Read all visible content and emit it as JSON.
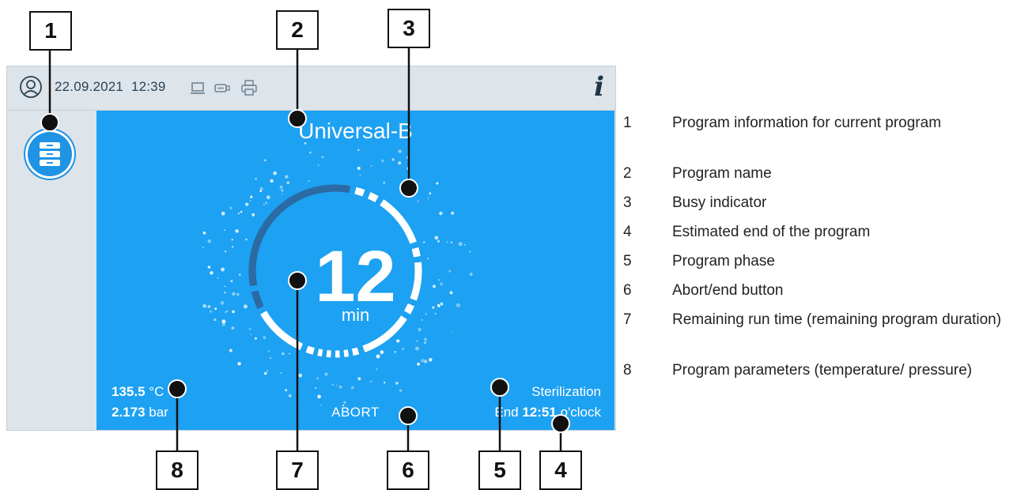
{
  "status_bar": {
    "date": "22.09.2021",
    "time": "12:39",
    "icons": [
      "user-icon",
      "computer-icon",
      "usb-stick-icon",
      "printer-icon"
    ],
    "info_label": "i"
  },
  "program": {
    "name": "Universal-B",
    "remaining_time": "12",
    "remaining_unit": "min",
    "temperature_value": "135.5",
    "temperature_unit": "°C",
    "pressure_value": "2.173",
    "pressure_unit": "bar",
    "abort_label": "ABORT",
    "phase": "Sterilization",
    "end_prefix": "End",
    "end_time": "12:51",
    "end_suffix": "o'clock"
  },
  "colors": {
    "panel_blue": "#1da1f2",
    "ring_dark": "#2b6aa3",
    "ring_light": "#ffffff",
    "status_bg": "#dde4ea"
  },
  "callouts": [
    "1",
    "2",
    "3",
    "4",
    "5",
    "6",
    "7",
    "8"
  ],
  "legend": [
    {
      "num": "1",
      "text": "Program information for current program"
    },
    {
      "num": "2",
      "text": "Program name"
    },
    {
      "num": "3",
      "text": "Busy indicator"
    },
    {
      "num": "4",
      "text": "Estimated end of the program"
    },
    {
      "num": "5",
      "text": "Program phase"
    },
    {
      "num": "6",
      "text": "Abort/end button"
    },
    {
      "num": "7",
      "text": "Remaining run time (remaining program duration)"
    },
    {
      "num": "8",
      "text": "Program parameters (temperature/ pressure)"
    }
  ]
}
